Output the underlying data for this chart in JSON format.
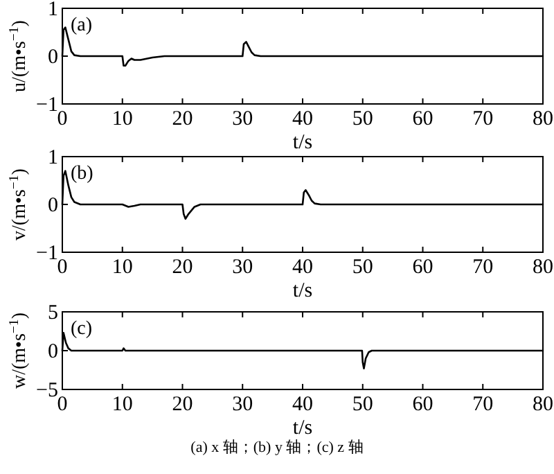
{
  "chart_data": [
    {
      "type": "line",
      "xlabel": "t/s",
      "ylabel": "u/(m•s$^{−1}$)",
      "annotations": [
        "(a)"
      ],
      "xlim": [
        0,
        80
      ],
      "xticks": [
        0,
        10,
        20,
        30,
        40,
        50,
        60,
        70,
        80
      ],
      "ylim": [
        -1,
        1
      ],
      "yticks": [
        -1,
        0,
        1
      ],
      "grid": false,
      "series": [
        {
          "color": "#000000",
          "x": [
            0,
            0.2,
            0.5,
            1,
            1.5,
            2,
            3,
            10,
            10.2,
            10.5,
            11,
            11.5,
            12,
            13,
            15,
            17,
            30,
            30.2,
            30.6,
            31,
            31.5,
            32,
            33,
            80
          ],
          "values": [
            0,
            0.55,
            0.6,
            0.35,
            0.1,
            0.02,
            0,
            0,
            -0.2,
            -0.2,
            -0.1,
            -0.05,
            -0.08,
            -0.08,
            -0.03,
            0,
            0,
            0.25,
            0.3,
            0.2,
            0.08,
            0.02,
            0,
            0
          ]
        }
      ]
    },
    {
      "type": "line",
      "xlabel": "t/s",
      "ylabel": "v/(m•s$^{−1}$)",
      "annotations": [
        "(b)"
      ],
      "xlim": [
        0,
        80
      ],
      "xticks": [
        0,
        10,
        20,
        30,
        40,
        50,
        60,
        70,
        80
      ],
      "ylim": [
        -1,
        1
      ],
      "yticks": [
        -1,
        0,
        1
      ],
      "grid": false,
      "series": [
        {
          "color": "#000000",
          "x": [
            0,
            0.2,
            0.5,
            1,
            1.5,
            2,
            3,
            10,
            11,
            12,
            13,
            20,
            20.2,
            20.5,
            21,
            22,
            23,
            40,
            40.2,
            40.5,
            41,
            41.5,
            42,
            43,
            80
          ],
          "values": [
            0,
            0.6,
            0.7,
            0.4,
            0.15,
            0.05,
            0,
            0,
            -0.05,
            -0.03,
            0,
            0,
            -0.2,
            -0.3,
            -0.2,
            -0.05,
            0,
            0,
            0.25,
            0.3,
            0.2,
            0.08,
            0.02,
            0,
            0
          ]
        }
      ]
    },
    {
      "type": "line",
      "xlabel": "t/s",
      "ylabel": "w/(m•s$^{−1}$)",
      "annotations": [
        "(c)",
        "(a) x 轴；(b) y 轴；(c) z 轴"
      ],
      "xlim": [
        0,
        80
      ],
      "xticks": [
        0,
        10,
        20,
        30,
        40,
        50,
        60,
        70,
        80
      ],
      "ylim": [
        -5,
        5
      ],
      "yticks": [
        -5,
        0,
        5
      ],
      "grid": false,
      "series": [
        {
          "color": "#000000",
          "x": [
            0,
            0.2,
            0.6,
            1,
            1.5,
            10,
            10.2,
            10.5,
            49.9,
            50,
            50.2,
            50.5,
            51,
            51.5,
            80
          ],
          "values": [
            0,
            2.3,
            1.0,
            0.3,
            0,
            0,
            0.3,
            0,
            0,
            -1.5,
            -2.3,
            -1.0,
            -0.2,
            0,
            0
          ]
        }
      ]
    }
  ]
}
